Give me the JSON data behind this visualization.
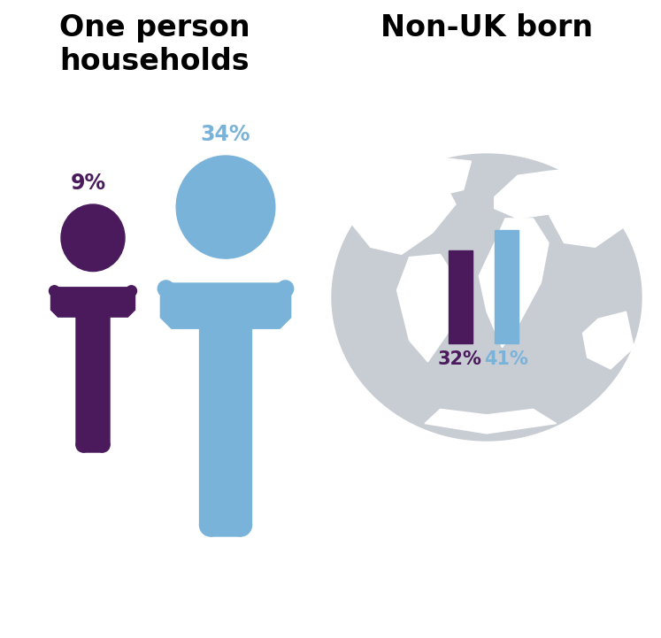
{
  "title_left": "One person\nhouseholds",
  "title_right": "Non-UK born",
  "person_small_color": "#4a1a5c",
  "person_large_color": "#7ab3d9",
  "pct_small": "9%",
  "pct_large": "34%",
  "pct_small_color": "#4a1a5c",
  "pct_large_color": "#7ab3d9",
  "globe_fill_color": "#c8cdd4",
  "globe_continent_color": "#ffffff",
  "bar1_color": "#4a1a5c",
  "bar2_color": "#7ab3d9",
  "bar1_label": "32%",
  "bar2_label": "41%",
  "bar_label_color1": "#4a1a5c",
  "bar_label_color2": "#7ab3d9",
  "background_color": "#ffffff",
  "title_fontsize": 24,
  "pct_fontsize": 17
}
